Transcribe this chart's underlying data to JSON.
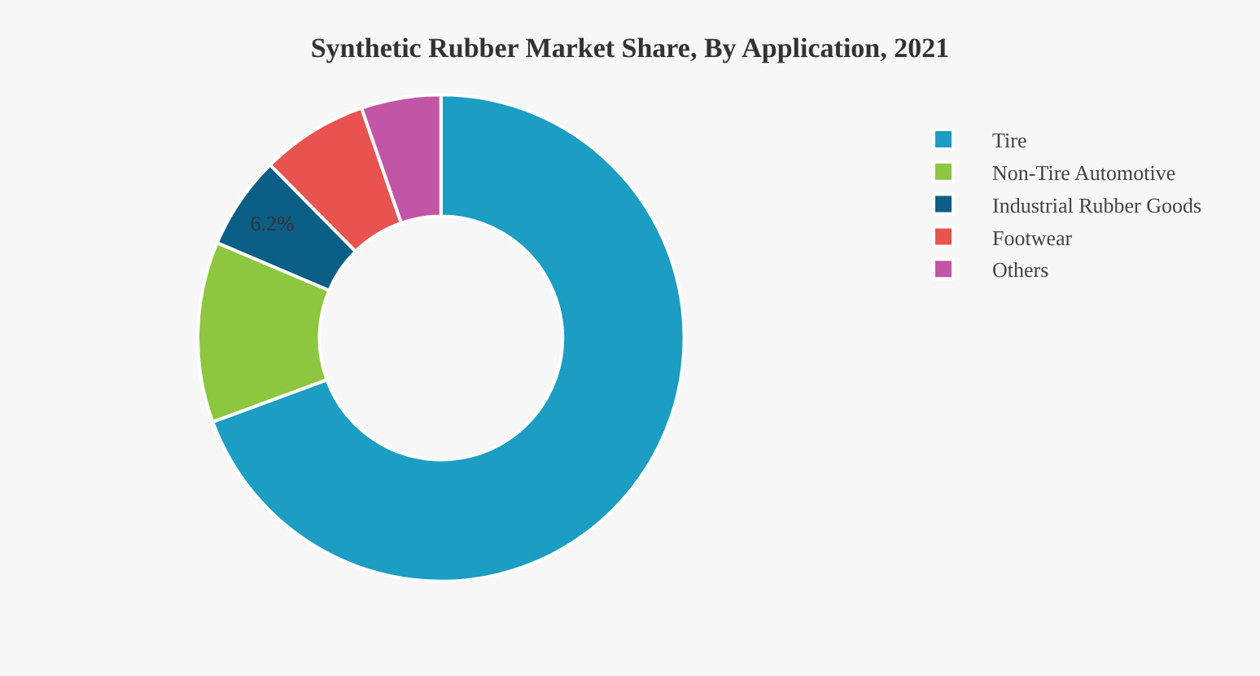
{
  "chart_data": {
    "type": "donut",
    "title": "Synthetic Rubber Market Share, By Application, 2021",
    "categories": [
      "Tire",
      "Non-Tire Automotive",
      "Industrial Rubber Goods",
      "Footwear",
      "Others"
    ],
    "values": [
      69.4,
      12,
      6.2,
      7.1,
      5.3
    ],
    "colors": [
      "#1b9dc4",
      "#8dc63f",
      "#0b5e86",
      "#e8534f",
      "#c355a6"
    ],
    "value_labels": [
      null,
      null,
      "6.2%",
      null,
      null
    ],
    "legend": "top right"
  }
}
